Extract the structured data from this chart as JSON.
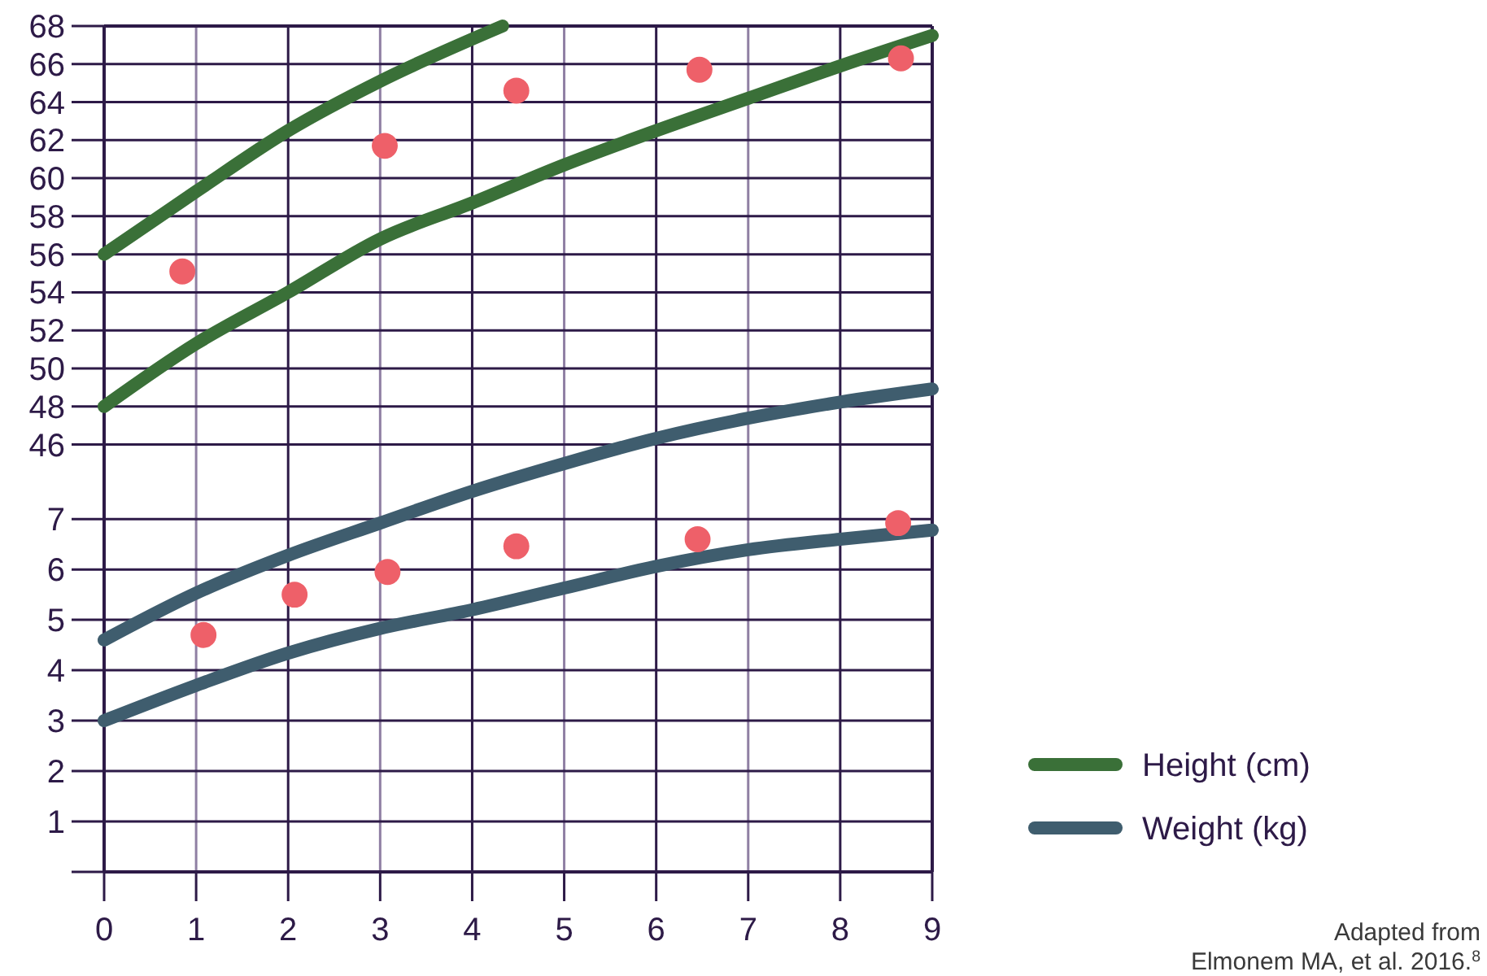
{
  "chart_data": {
    "type": "line",
    "annotations": [
      "Adapted from\nElmonem MA, et al. 2016.$^{8}$"
    ],
    "xlim": [
      0,
      9
    ],
    "xticks": [
      0,
      1,
      2,
      3,
      4,
      5,
      6,
      7,
      8,
      9
    ],
    "ylim": [
      23.53,
      68
    ],
    "yticks": [
      46,
      48,
      50,
      52,
      54,
      56,
      58,
      60,
      62,
      64,
      66,
      68
    ],
    "y2lim": [
      0,
      16.78
    ],
    "y2ticks": [
      {
        "value": 0,
        "label": null
      },
      1,
      2,
      3,
      4,
      5,
      6,
      7
    ],
    "grid": true,
    "legend": "right",
    "marker": "none",
    "line_style": "solid",
    "series": [
      {
        "name": "Height (cm)",
        "color": "#3a7038",
        "x": [
          0,
          1,
          2,
          3,
          4.33
        ],
        "values": [
          56,
          59.3,
          62.5,
          65.1,
          68
        ]
      },
      {
        "color": "#3a7038",
        "x": [
          0,
          1,
          2,
          3,
          4,
          5,
          6,
          7,
          8,
          9
        ],
        "values": [
          48,
          51.3,
          54,
          56.8,
          58.7,
          60.7,
          62.5,
          64.2,
          65.9,
          67.5
        ]
      },
      {
        "name": "Weight (kg)",
        "color": "#3f5d6e",
        "axis": "y2",
        "x": [
          0,
          1,
          2,
          3,
          4,
          5,
          6,
          7,
          8,
          9
        ],
        "values": [
          4.6,
          5.53,
          6.28,
          6.92,
          7.55,
          8.1,
          8.6,
          9,
          9.32,
          9.58
        ]
      },
      {
        "color": "#3f5d6e",
        "axis": "y2",
        "x": [
          0,
          1,
          2,
          3,
          4,
          5,
          6,
          7,
          8,
          9
        ],
        "values": [
          3,
          3.7,
          4.34,
          4.83,
          5.2,
          5.63,
          6.06,
          6.39,
          6.6,
          6.78
        ]
      },
      {
        "type": "scatter",
        "marker": "circle",
        "color": "#ee6069",
        "x": [
          0.85,
          3.05,
          4.48,
          6.47,
          8.66
        ],
        "values": [
          55.1,
          61.7,
          64.6,
          65.7,
          66.3
        ]
      },
      {
        "type": "scatter",
        "marker": "circle",
        "color": "#ee6069",
        "axis": "y2",
        "x": [
          1.08,
          2.07,
          3.08,
          4.48,
          6.45,
          8.63
        ],
        "values": [
          4.7,
          5.5,
          5.95,
          6.46,
          6.6,
          6.92
        ]
      }
    ]
  }
}
